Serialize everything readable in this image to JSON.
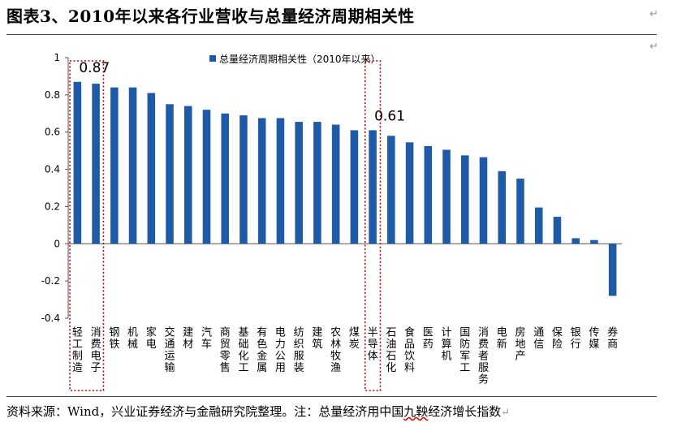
{
  "header": {
    "title": "图表3、2010年以来各行业营收与总量经济周期相关性",
    "return_mark": "↵"
  },
  "footer": {
    "source_prefix": "资料来源：Wind，兴业证券经济与金融研究院整理。注：总量经济用中国",
    "source_underlined": "九鞅",
    "source_suffix": "经济增长指数",
    "return_mark": "↵"
  },
  "colors": {
    "bar": "#1f5aa6",
    "highlight_box": "#c00000"
  },
  "chart_data": {
    "type": "bar",
    "legend": "总量经济周期相关性（2010年以来）",
    "legend_position": "top-center",
    "ylim": [
      -0.4,
      1
    ],
    "yticks": [
      {
        "v": 1,
        "label": "1"
      },
      {
        "v": 0.8,
        "label": "0.8"
      },
      {
        "v": 0.6,
        "label": "0.6"
      },
      {
        "v": 0.4,
        "label": "0.4"
      },
      {
        "v": 0.2,
        "label": "0.2"
      },
      {
        "v": 0,
        "label": "0"
      },
      {
        "v": -0.2,
        "label": "-0.2"
      },
      {
        "v": -0.4,
        "label": "-0.4"
      }
    ],
    "grid": false,
    "categories": [
      "轻工制造",
      "消费电子",
      "钢铁",
      "机械",
      "家电",
      "交通运输",
      "建材",
      "汽车",
      "商贸零售",
      "基础化工",
      "有色金属",
      "电力公用",
      "纺织服装",
      "建筑",
      "农林牧渔",
      "煤炭",
      "半导体",
      "石油石化",
      "食品饮料",
      "医药",
      "计算机",
      "国防军工",
      "消费者服务",
      "电新",
      "房地产",
      "通信",
      "保险",
      "银行",
      "传媒",
      "券商"
    ],
    "values": [
      0.87,
      0.86,
      0.84,
      0.84,
      0.81,
      0.75,
      0.74,
      0.72,
      0.7,
      0.69,
      0.675,
      0.675,
      0.655,
      0.655,
      0.64,
      0.61,
      0.61,
      0.58,
      0.545,
      0.525,
      0.505,
      0.475,
      0.465,
      0.39,
      0.35,
      0.195,
      0.145,
      0.03,
      0.02,
      -0.28
    ],
    "annotations": [
      {
        "text": "0.87",
        "category_index": 0
      },
      {
        "text": "0.61",
        "category_index": 16
      }
    ],
    "highlight_indices": [
      [
        0,
        1
      ],
      [
        16,
        16
      ]
    ]
  }
}
